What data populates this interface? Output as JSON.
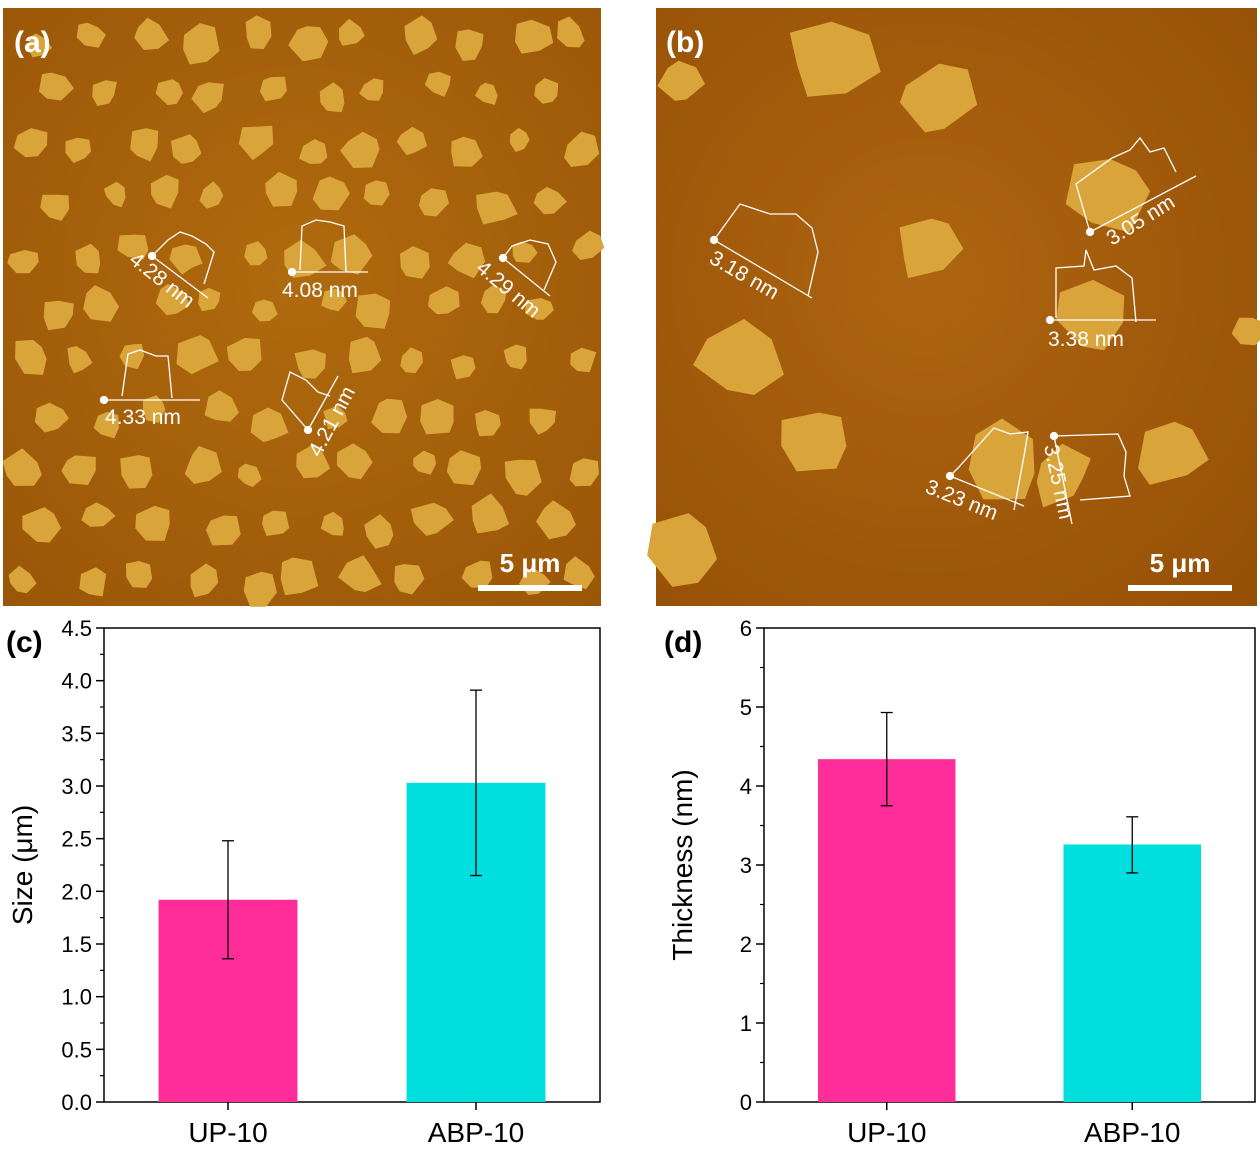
{
  "panels": {
    "a": {
      "tag": "(a)",
      "scale_bar": "5 μm",
      "annotations": [
        "4.28 nm",
        "4.08 nm",
        "4.29 nm",
        "4.33 nm",
        "4.21 nm"
      ]
    },
    "b": {
      "tag": "(b)",
      "scale_bar": "5 μm",
      "annotations": [
        "3.18 nm",
        "3.05 nm",
        "3.38 nm",
        "3.23 nm",
        "3.25 nm"
      ]
    }
  },
  "colors": {
    "afm_background_a": "#a8620a",
    "afm_background_b": "#a35a08",
    "flake": "#d9a53a",
    "bar_up": "#ff2d9a",
    "bar_abp": "#00dede",
    "annotation": "#ffffff"
  },
  "chart_data": [
    {
      "tag": "(c)",
      "type": "bar",
      "categories": [
        "UP-10",
        "ABP-10"
      ],
      "values": [
        1.92,
        3.03
      ],
      "error_low": [
        1.36,
        2.15
      ],
      "error_high": [
        2.48,
        3.91
      ],
      "ylabel": "Size (μm)",
      "ylim": [
        0,
        4.5
      ],
      "yticks": [
        "0.0",
        "0.5",
        "1.0",
        "1.5",
        "2.0",
        "2.5",
        "3.0",
        "3.5",
        "4.0",
        "4.5"
      ],
      "colors": [
        "#ff2d9a",
        "#00dede"
      ]
    },
    {
      "tag": "(d)",
      "type": "bar",
      "categories": [
        "UP-10",
        "ABP-10"
      ],
      "values": [
        4.34,
        3.26
      ],
      "error_low": [
        3.75,
        2.9
      ],
      "error_high": [
        4.93,
        3.61
      ],
      "ylabel": "Thickness (nm)",
      "ylim": [
        0,
        6
      ],
      "yticks": [
        "0",
        "1",
        "2",
        "3",
        "4",
        "5",
        "6"
      ],
      "colors": [
        "#ff2d9a",
        "#00dede"
      ]
    }
  ]
}
